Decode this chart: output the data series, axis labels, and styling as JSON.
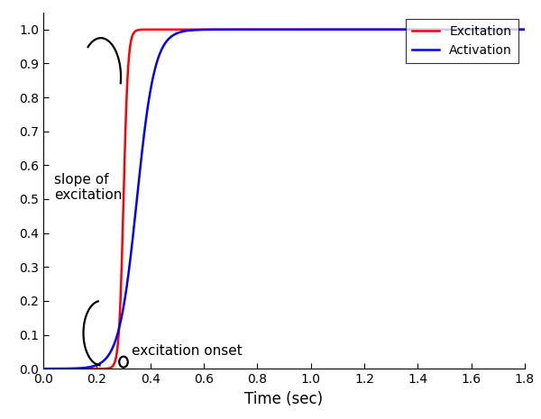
{
  "title": "",
  "xlabel": "Time (sec)",
  "ylabel": "",
  "xlim": [
    0,
    1.8
  ],
  "ylim": [
    0,
    1.05
  ],
  "xticks": [
    0,
    0.2,
    0.4,
    0.6,
    0.8,
    1.0,
    1.2,
    1.4,
    1.6,
    1.8
  ],
  "yticks": [
    0,
    0.1,
    0.2,
    0.3,
    0.4,
    0.5,
    0.6,
    0.7,
    0.8,
    0.9,
    1.0
  ],
  "excitation_color": "#ff0000",
  "activation_color": "#0000ff",
  "annotation_color": "#000000",
  "legend_excitation": "Excitation",
  "legend_activation": "Activation",
  "excitation_onset": 0.3,
  "excitation_slope": 120,
  "activation_slope": 30,
  "activation_onset": 0.35,
  "figsize": [
    6.0,
    4.65
  ],
  "dpi": 100,
  "line_width": 1.8,
  "annotation_lw": 1.6,
  "font_size": 11
}
